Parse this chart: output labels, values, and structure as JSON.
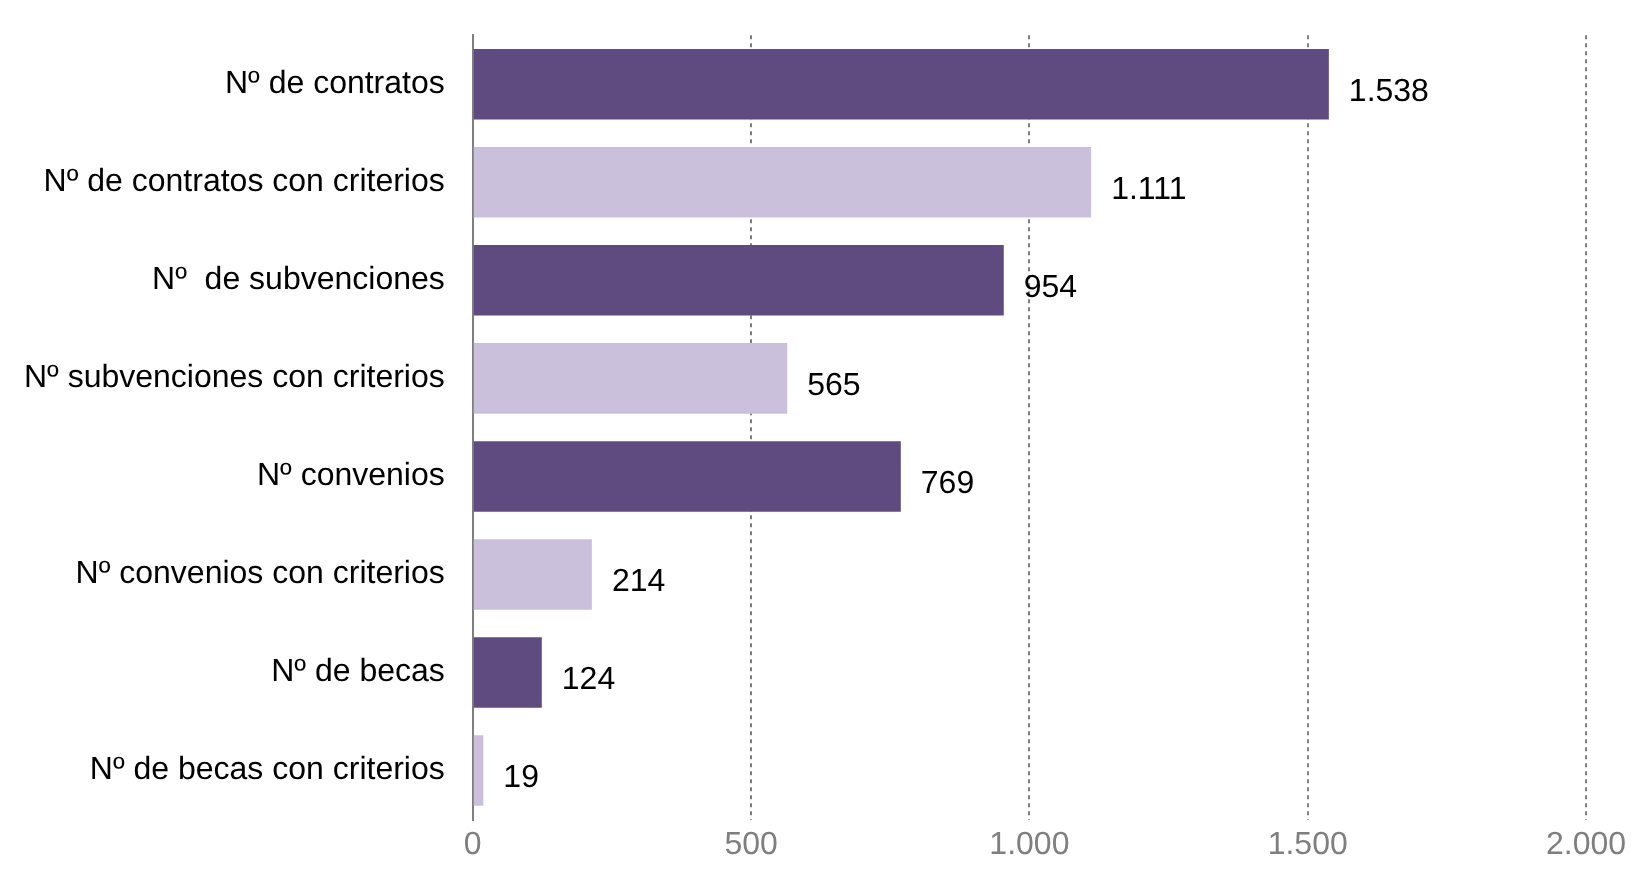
{
  "chart_data": {
    "type": "bar",
    "orientation": "horizontal",
    "categories": [
      "Nº de contratos",
      "Nº de contratos con criterios",
      "Nº  de subvenciones",
      "Nº subvenciones con criterios",
      "Nº convenios",
      "Nº convenios con criterios",
      "Nº de becas",
      "Nº de becas con criterios"
    ],
    "values": [
      1538,
      1111,
      954,
      565,
      769,
      214,
      124,
      19
    ],
    "colors": [
      "#5f4b7f",
      "#cbc0dc",
      "#5f4b7f",
      "#cbc0dc",
      "#5f4b7f",
      "#cbc0dc",
      "#5f4b7f",
      "#cbc0dc"
    ],
    "value_labels": [
      "1.538",
      "1.111",
      "954",
      "565",
      "769",
      "214",
      "124",
      "19"
    ],
    "xlim": [
      0,
      2000
    ],
    "xticks": [
      0,
      500,
      {
        "value": 1000,
        "label": "1.000"
      },
      {
        "value": 1500,
        "label": "1.500"
      },
      {
        "value": 2000,
        "label": "2.000"
      }
    ],
    "grid": "x",
    "legend": false
  }
}
